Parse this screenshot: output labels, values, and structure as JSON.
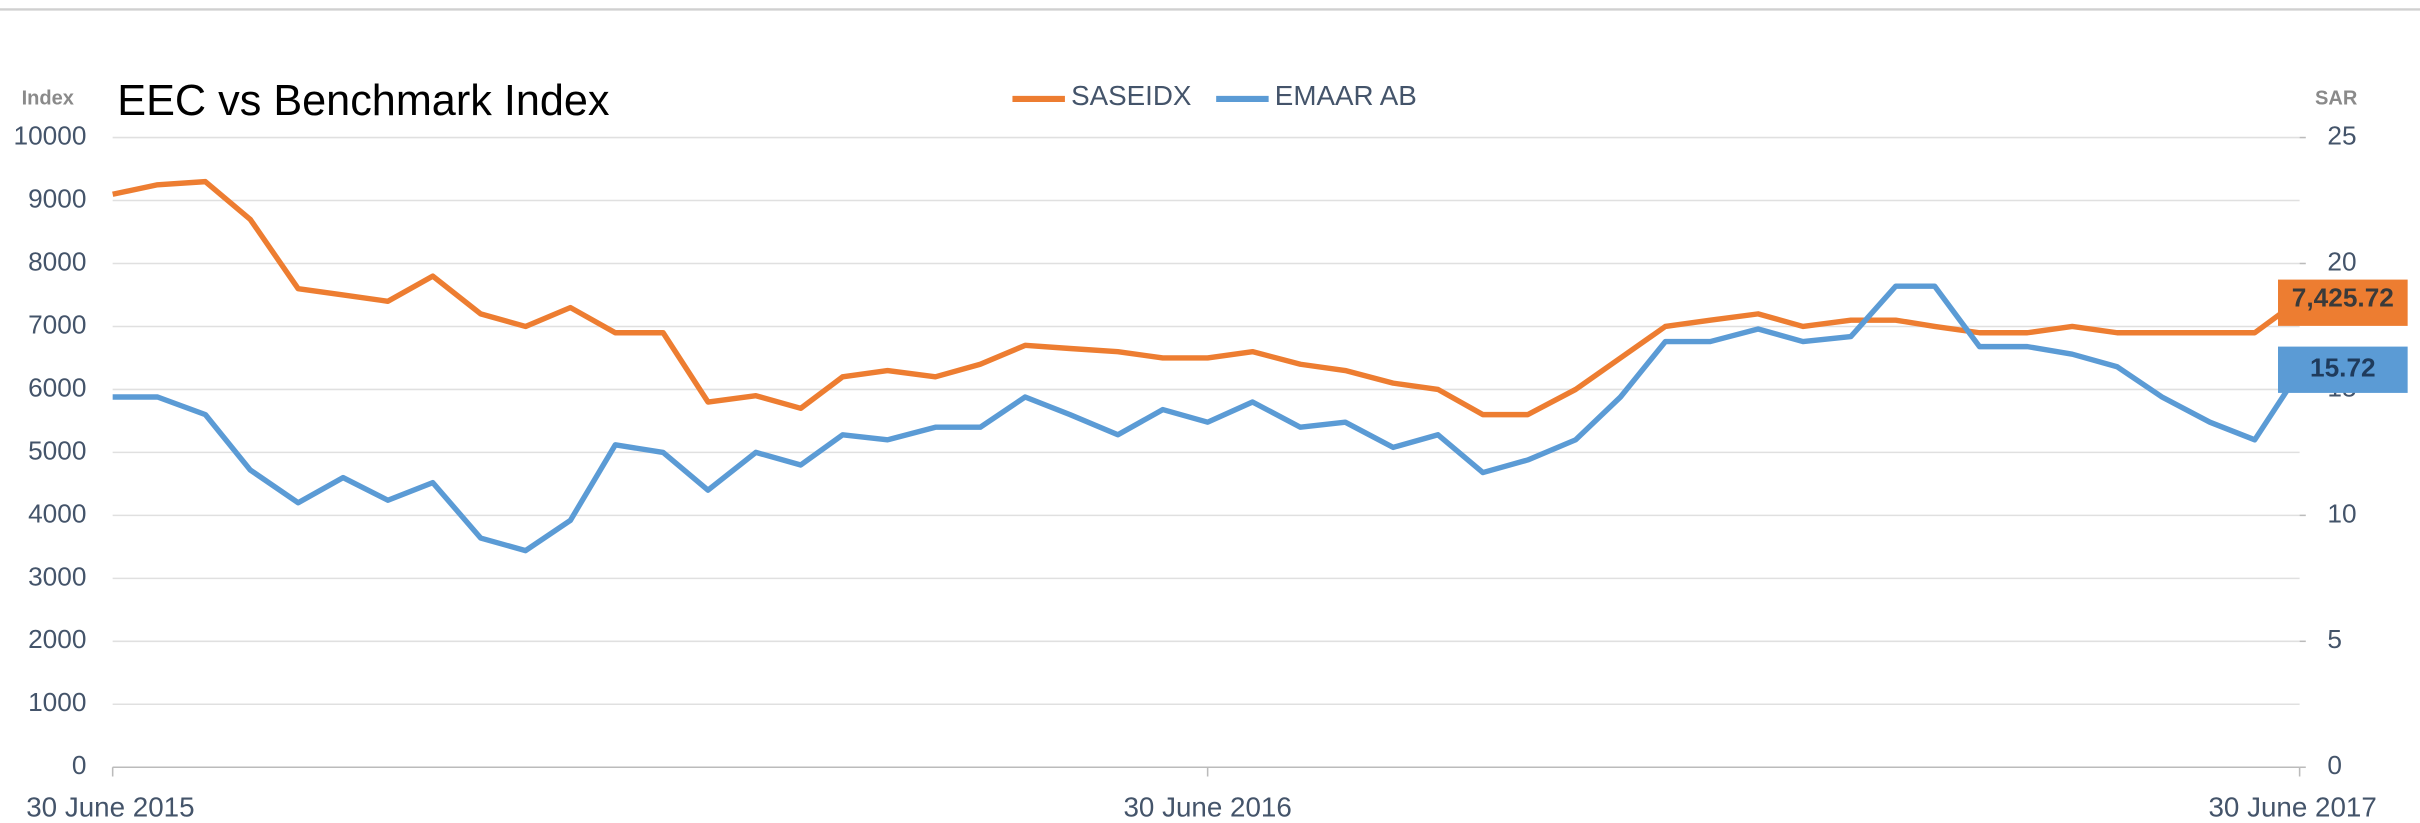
{
  "chart_data": {
    "type": "line",
    "title": "EEC vs Benchmark Index",
    "ylabel": "Index",
    "y2label": "SAR",
    "x": [
      "2015-06-30",
      "2015-07-15",
      "2015-07-31",
      "2015-08-15",
      "2015-08-31",
      "2015-09-15",
      "2015-09-30",
      "2015-10-15",
      "2015-10-31",
      "2015-11-15",
      "2015-11-30",
      "2015-12-15",
      "2015-12-31",
      "2016-01-15",
      "2016-01-31",
      "2016-02-15",
      "2016-02-29",
      "2016-03-15",
      "2016-03-31",
      "2016-04-15",
      "2016-04-30",
      "2016-05-15",
      "2016-05-31",
      "2016-06-15",
      "2016-06-30",
      "2016-07-15",
      "2016-07-31",
      "2016-08-15",
      "2016-08-31",
      "2016-09-15",
      "2016-09-30",
      "2016-10-15",
      "2016-10-31",
      "2016-11-15",
      "2016-11-30",
      "2016-12-15",
      "2016-12-31",
      "2017-01-15",
      "2017-01-31",
      "2017-02-15",
      "2017-02-28",
      "2017-03-15",
      "2017-03-31",
      "2017-04-15",
      "2017-04-30",
      "2017-05-15",
      "2017-05-31",
      "2017-06-15",
      "2017-06-30"
    ],
    "series": [
      {
        "name": "SASEIDX",
        "color": "#ed7d31",
        "end_label": "7,425.72",
        "values": [
          9100,
          9250,
          9300,
          8700,
          7600,
          7500,
          7400,
          7800,
          7200,
          7000,
          7300,
          6900,
          6900,
          5800,
          5900,
          5700,
          6200,
          6300,
          6200,
          6400,
          6700,
          6650,
          6600,
          6500,
          6500,
          6600,
          6400,
          6300,
          6100,
          6000,
          5600,
          5600,
          6000,
          6500,
          7000,
          7100,
          7200,
          7000,
          7100,
          7100,
          7000,
          6900,
          6900,
          7000,
          6900,
          6900,
          6900,
          6900,
          7425.72
        ]
      },
      {
        "name": "EMAAR AB",
        "color": "#5b9bd5",
        "axis": "y2",
        "end_label": "15.72",
        "values": [
          14.7,
          14.7,
          14.0,
          11.8,
          10.5,
          11.5,
          10.6,
          11.3,
          9.1,
          8.6,
          9.8,
          12.8,
          12.5,
          11.0,
          12.5,
          12.0,
          13.2,
          13.0,
          13.5,
          13.5,
          14.7,
          14.0,
          13.2,
          14.2,
          13.7,
          14.5,
          13.5,
          13.7,
          12.7,
          13.2,
          11.7,
          12.2,
          13.0,
          14.7,
          16.9,
          16.9,
          17.4,
          16.9,
          17.1,
          19.1,
          19.1,
          16.7,
          16.7,
          16.4,
          15.9,
          14.7,
          13.7,
          13.0,
          15.72
        ]
      }
    ],
    "xlim": [
      "2015-06-30",
      "2017-06-30"
    ],
    "xticks": [
      {
        "value": "2015-06-30",
        "label": "30 June 2015"
      },
      {
        "value": "2016-06-30",
        "label": "30 June 2016"
      },
      {
        "value": "2017-06-30",
        "label": "30 June 2017"
      }
    ],
    "ylim": [
      0,
      10000
    ],
    "yticks": [
      0,
      1000,
      2000,
      3000,
      4000,
      5000,
      6000,
      7000,
      8000,
      9000,
      10000
    ],
    "y2lim": [
      0,
      25
    ],
    "y2ticks": [
      0,
      5,
      10,
      15,
      20,
      25
    ],
    "grid": true,
    "legend": "top"
  }
}
